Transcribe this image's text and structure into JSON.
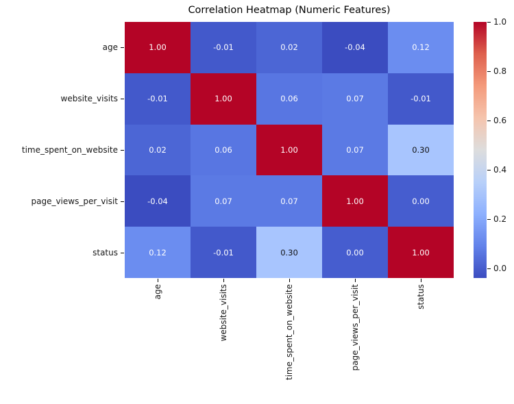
{
  "chart_data": {
    "type": "heatmap",
    "title": "Correlation Heatmap (Numeric Features)",
    "x_labels": [
      "age",
      "website_visits",
      "time_spent_on_website",
      "page_views_per_visit",
      "status"
    ],
    "y_labels": [
      "age",
      "website_visits",
      "time_spent_on_website",
      "page_views_per_visit",
      "status"
    ],
    "matrix": [
      [
        1.0,
        -0.01,
        0.02,
        -0.04,
        0.12
      ],
      [
        -0.01,
        1.0,
        0.06,
        0.07,
        -0.01
      ],
      [
        0.02,
        0.06,
        1.0,
        0.07,
        0.3
      ],
      [
        -0.04,
        0.07,
        0.07,
        1.0,
        0.0
      ],
      [
        0.12,
        -0.01,
        0.3,
        0.0,
        1.0
      ]
    ],
    "colormap": "coolwarm",
    "vmin": -0.04,
    "vmax": 1.0,
    "annotation_format": "0.00",
    "grid": false,
    "colorbar": {
      "position": "right",
      "tick_values": [
        1.0,
        0.8,
        0.6,
        0.4,
        0.2,
        0.0
      ],
      "tick_labels": [
        "1.0",
        "0.8",
        "0.6",
        "0.4",
        "0.2",
        "0.0"
      ],
      "gradient_stops_bottom_to_top": [
        "#3b4cc0",
        "#6282ea",
        "#8db0fe",
        "#b8d0f9",
        "#dddddd",
        "#f5c4ad",
        "#f49a7b",
        "#de604d",
        "#b40426"
      ]
    },
    "cell_styles": {
      "1.00": {
        "bg": "#b40426",
        "fg": "#ffffff"
      },
      "0.30": {
        "bg": "#a8c5fe",
        "fg": "#111111"
      },
      "0.12": {
        "bg": "#6b8df0",
        "fg": "#ffffff"
      },
      "0.07": {
        "bg": "#5b7ae4",
        "fg": "#ffffff"
      },
      "0.06": {
        "bg": "#5876e2",
        "fg": "#ffffff"
      },
      "0.02": {
        "bg": "#4c66d5",
        "fg": "#ffffff"
      },
      "0.00": {
        "bg": "#465dcf",
        "fg": "#ffffff"
      },
      "-0.01": {
        "bg": "#4359cb",
        "fg": "#ffffff"
      },
      "-0.04": {
        "bg": "#3b4cc0",
        "fg": "#ffffff"
      }
    }
  }
}
